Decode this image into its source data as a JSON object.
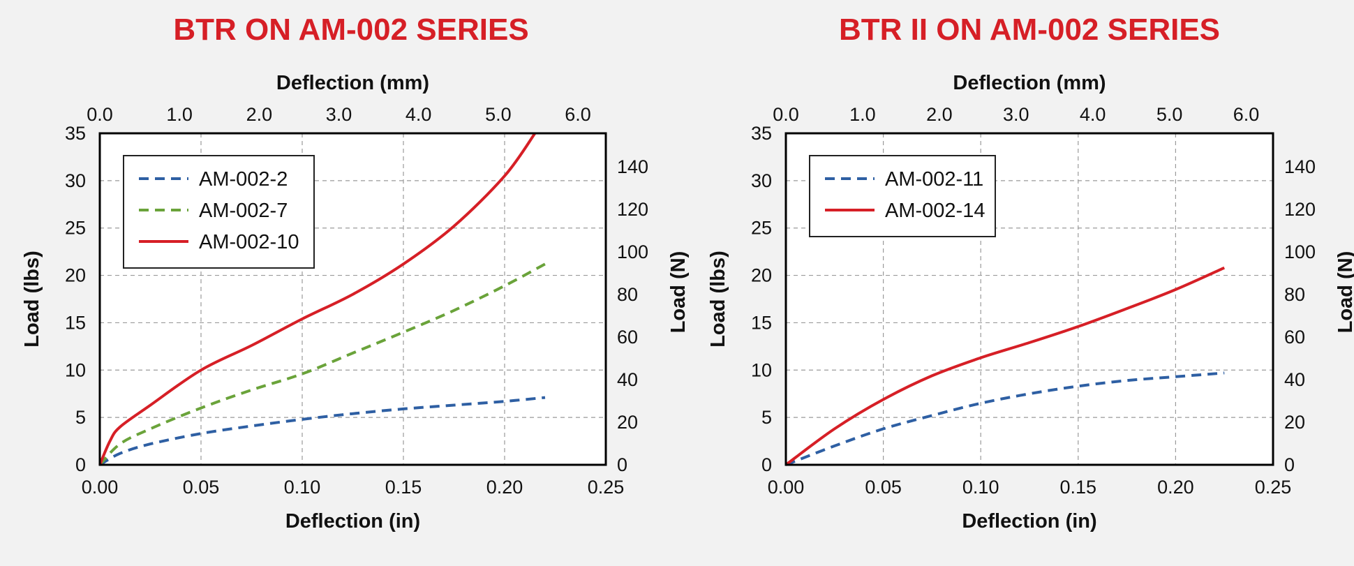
{
  "colors": {
    "title": "#d61f26",
    "blue": "#2e5fa3",
    "green": "#6aa33a",
    "red": "#d61f26",
    "grid": "#9a9a9a",
    "frame": "#000000",
    "plot_bg": "#ffffff"
  },
  "chart_data": [
    {
      "type": "line",
      "title": "BTR ON AM-002 SERIES",
      "xlabel": "Deflection (in)",
      "ylabel": "Load (lbs)",
      "x2label": "Deflection (mm)",
      "y2label": "Load (N)",
      "xlim": [
        0,
        0.25
      ],
      "ylim": [
        0,
        35
      ],
      "x2lim": [
        0,
        6.35
      ],
      "y2lim": [
        0,
        155.7
      ],
      "xticks": [
        "0.00",
        "0.05",
        "0.10",
        "0.15",
        "0.20",
        "0.25"
      ],
      "yticks": [
        "0",
        "5",
        "10",
        "15",
        "20",
        "25",
        "30",
        "35"
      ],
      "x2ticks": [
        "0.0",
        "1.0",
        "2.0",
        "3.0",
        "4.0",
        "5.0",
        "6.0"
      ],
      "y2ticks": [
        "0",
        "20",
        "40",
        "60",
        "80",
        "100",
        "120",
        "140"
      ],
      "grid": true,
      "legend_position": "top-left",
      "series": [
        {
          "name": "AM-002-2",
          "style": "dashed",
          "color": "blue",
          "x": [
            0,
            0.01,
            0.025,
            0.05,
            0.075,
            0.1,
            0.125,
            0.15,
            0.175,
            0.2,
            0.22
          ],
          "y": [
            0,
            1.2,
            2.2,
            3.3,
            4.1,
            4.8,
            5.4,
            5.9,
            6.3,
            6.7,
            7.1
          ]
        },
        {
          "name": "AM-002-7",
          "style": "dashed",
          "color": "green",
          "x": [
            0,
            0.01,
            0.025,
            0.05,
            0.075,
            0.1,
            0.125,
            0.15,
            0.175,
            0.2,
            0.22
          ],
          "y": [
            0,
            2.2,
            3.8,
            6.0,
            7.9,
            9.6,
            11.8,
            14.0,
            16.3,
            18.9,
            21.2
          ]
        },
        {
          "name": "AM-002-10",
          "style": "solid",
          "color": "red",
          "x": [
            0,
            0.005,
            0.01,
            0.025,
            0.05,
            0.075,
            0.1,
            0.125,
            0.15,
            0.175,
            0.2,
            0.215
          ],
          "y": [
            0,
            2.5,
            4.0,
            6.3,
            10.0,
            12.6,
            15.4,
            18.0,
            21.2,
            25.2,
            30.5,
            35
          ]
        }
      ]
    },
    {
      "type": "line",
      "title": "BTR II ON AM-002 SERIES",
      "xlabel": "Deflection (in)",
      "ylabel": "Load (lbs)",
      "x2label": "Deflection (mm)",
      "y2label": "Load (N)",
      "xlim": [
        0,
        0.25
      ],
      "ylim": [
        0,
        35
      ],
      "x2lim": [
        0,
        6.35
      ],
      "y2lim": [
        0,
        155.7
      ],
      "xticks": [
        "0.00",
        "0.05",
        "0.10",
        "0.15",
        "0.20",
        "0.25"
      ],
      "yticks": [
        "0",
        "5",
        "10",
        "15",
        "20",
        "25",
        "30",
        "35"
      ],
      "x2ticks": [
        "0.0",
        "1.0",
        "2.0",
        "3.0",
        "4.0",
        "5.0",
        "6.0"
      ],
      "y2ticks": [
        "0",
        "20",
        "40",
        "60",
        "80",
        "100",
        "120",
        "140"
      ],
      "grid": true,
      "legend_position": "top-left",
      "series": [
        {
          "name": "AM-002-11",
          "style": "dashed",
          "color": "blue",
          "x": [
            0,
            0.025,
            0.05,
            0.075,
            0.1,
            0.125,
            0.15,
            0.175,
            0.2,
            0.225
          ],
          "y": [
            0,
            2.0,
            3.8,
            5.2,
            6.5,
            7.5,
            8.3,
            8.9,
            9.3,
            9.7
          ]
        },
        {
          "name": "AM-002-14",
          "style": "solid",
          "color": "red",
          "x": [
            0,
            0.025,
            0.05,
            0.075,
            0.1,
            0.125,
            0.15,
            0.175,
            0.2,
            0.225
          ],
          "y": [
            0,
            3.8,
            6.9,
            9.4,
            11.3,
            12.9,
            14.6,
            16.5,
            18.5,
            20.8
          ]
        }
      ]
    }
  ]
}
